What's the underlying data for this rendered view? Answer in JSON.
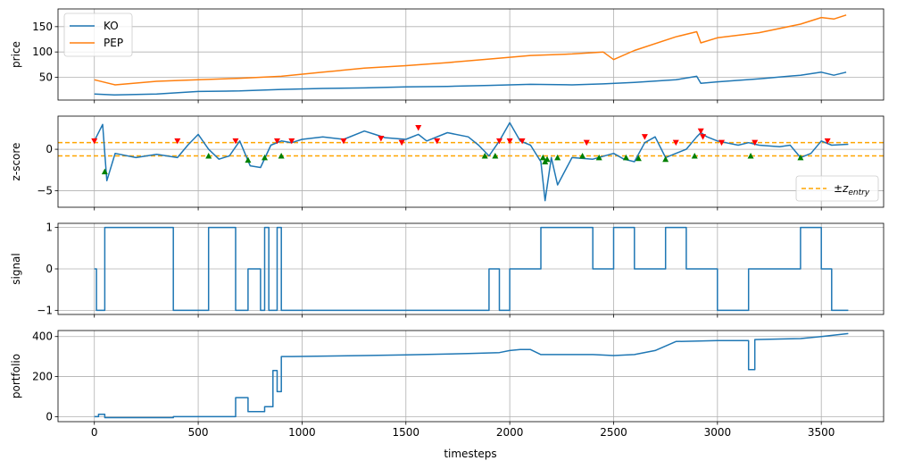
{
  "chart_data": [
    {
      "type": "line",
      "ylabel": "price",
      "xlim": [
        -175,
        3800
      ],
      "ylim": [
        5,
        185
      ],
      "yticks": [
        50,
        100,
        150
      ],
      "grid": true,
      "legend": {
        "placement": "top-left",
        "entries": [
          "KO",
          "PEP"
        ]
      },
      "series": [
        {
          "name": "KO",
          "color": "#1f77b4",
          "x": [
            0,
            100,
            300,
            500,
            700,
            900,
            1100,
            1300,
            1500,
            1700,
            1900,
            2100,
            2300,
            2450,
            2600,
            2800,
            2900,
            2920,
            3000,
            3200,
            3400,
            3500,
            3560,
            3620
          ],
          "y": [
            17,
            15,
            17,
            22,
            23,
            26,
            28,
            29,
            31,
            32,
            34,
            36,
            35,
            37,
            40,
            45,
            52,
            38,
            41,
            47,
            54,
            60,
            54,
            60
          ]
        },
        {
          "name": "PEP",
          "color": "#ff7f0e",
          "x": [
            0,
            100,
            300,
            500,
            700,
            900,
            1100,
            1300,
            1500,
            1700,
            1900,
            2100,
            2300,
            2450,
            2500,
            2600,
            2800,
            2900,
            2920,
            3000,
            3200,
            3400,
            3500,
            3560,
            3620
          ],
          "y": [
            45,
            35,
            42,
            45,
            48,
            52,
            60,
            68,
            73,
            79,
            86,
            93,
            96,
            100,
            85,
            103,
            130,
            140,
            118,
            128,
            138,
            155,
            168,
            165,
            173
          ]
        }
      ]
    },
    {
      "type": "line",
      "ylabel": "z-score",
      "xlim": [
        -175,
        3800
      ],
      "ylim": [
        -7,
        4
      ],
      "yticks": [
        -5,
        0
      ],
      "grid": true,
      "legend": {
        "placement": "bottom-right",
        "entries": [
          "±z_entry"
        ]
      },
      "thresholds": {
        "upper": 0.8,
        "lower": -0.8,
        "color": "#ffa500",
        "style": "dashed"
      },
      "series": [
        {
          "name": "",
          "color": "#1f77b4",
          "x": [
            0,
            40,
            60,
            100,
            200,
            300,
            400,
            450,
            500,
            550,
            600,
            650,
            700,
            750,
            800,
            850,
            900,
            950,
            1000,
            1100,
            1200,
            1300,
            1350,
            1400,
            1500,
            1560,
            1600,
            1700,
            1800,
            1850,
            1900,
            1950,
            2000,
            2050,
            2100,
            2150,
            2170,
            2200,
            2230,
            2300,
            2400,
            2500,
            2550,
            2600,
            2650,
            2700,
            2750,
            2800,
            2850,
            2900,
            2920,
            2950,
            3000,
            3100,
            3150,
            3200,
            3300,
            3350,
            3400,
            3450,
            3500,
            3550,
            3630
          ],
          "y": [
            1,
            3,
            -3.8,
            -0.5,
            -1,
            -0.6,
            -1,
            0.5,
            1.8,
            0,
            -1.2,
            -0.8,
            1,
            -2,
            -2.2,
            0.5,
            1,
            0.8,
            1.2,
            1.5,
            1.2,
            2.2,
            1.8,
            1.4,
            1.2,
            1.8,
            1,
            2,
            1.5,
            0.5,
            -0.8,
            1,
            3.2,
            1,
            0.5,
            -1.5,
            -6.2,
            -1,
            -4.3,
            -1,
            -1.2,
            -0.5,
            -1.2,
            -1.5,
            0.8,
            1.5,
            -1,
            -0.5,
            0,
            1.5,
            2,
            1.5,
            1,
            0.5,
            0.8,
            0.5,
            0.3,
            0.5,
            -1,
            -0.5,
            1,
            0.5,
            0.6
          ]
        }
      ],
      "sell_markers": {
        "color": "#ff0000",
        "shape": "triangle-down",
        "x": [
          0,
          400,
          680,
          880,
          950,
          1200,
          1380,
          1480,
          1560,
          1650,
          1950,
          2000,
          2060,
          2370,
          2650,
          2800,
          2920,
          2930,
          3020,
          3180,
          3530
        ],
        "y": [
          1,
          1,
          1,
          1,
          1,
          1,
          1.3,
          0.8,
          2.6,
          1,
          1,
          1,
          1,
          0.8,
          1.5,
          0.8,
          2.2,
          1.5,
          0.8,
          0.8,
          1
        ]
      },
      "buy_markers": {
        "color": "#008000",
        "shape": "triangle-up",
        "x": [
          50,
          550,
          740,
          820,
          900,
          1880,
          1930,
          2160,
          2170,
          2180,
          2230,
          2350,
          2430,
          2560,
          2620,
          2750,
          2890,
          3160,
          3400
        ],
        "y": [
          -2.7,
          -0.8,
          -1.3,
          -1,
          -0.8,
          -0.8,
          -0.8,
          -1,
          -1.5,
          -1.2,
          -1,
          -0.8,
          -1,
          -1,
          -1.1,
          -1.2,
          -0.8,
          -0.8,
          -1
        ]
      }
    },
    {
      "type": "line",
      "ylabel": "signal",
      "xlim": [
        -175,
        3800
      ],
      "ylim": [
        -1.1,
        1.1
      ],
      "yticks": [
        -1,
        0,
        1
      ],
      "grid": true,
      "series": [
        {
          "name": "",
          "color": "#1f77b4",
          "x": [
            0,
            10,
            10,
            50,
            50,
            380,
            380,
            550,
            550,
            550,
            550,
            680,
            680,
            740,
            740,
            800,
            800,
            820,
            820,
            840,
            840,
            880,
            880,
            900,
            900,
            950,
            950,
            1900,
            1900,
            1950,
            1950,
            2000,
            2000,
            2150,
            2150,
            2200,
            2200,
            2400,
            2400,
            2500,
            2500,
            2600,
            2600,
            2750,
            2750,
            2850,
            2850,
            3000,
            3000,
            3150,
            3150,
            3400,
            3400,
            3500,
            3500,
            3550,
            3550,
            3630
          ],
          "y": [
            0,
            0,
            -1,
            -1,
            1,
            1,
            -1,
            -1,
            0,
            0,
            1,
            1,
            -1,
            -1,
            0,
            0,
            -1,
            -1,
            1,
            1,
            -1,
            -1,
            1,
            1,
            -1,
            -1,
            -1,
            -1,
            0,
            0,
            -1,
            -1,
            0,
            0,
            1,
            1,
            1,
            1,
            0,
            0,
            1,
            1,
            0,
            0,
            1,
            1,
            0,
            0,
            -1,
            -1,
            0,
            0,
            1,
            1,
            0,
            0,
            -1,
            -1
          ]
        }
      ]
    },
    {
      "type": "line",
      "ylabel": "portfolio",
      "xlabel": "timesteps",
      "xlim": [
        -175,
        3800
      ],
      "ylim": [
        -25,
        430
      ],
      "yticks": [
        0,
        200,
        400
      ],
      "xticks": [
        0,
        500,
        1000,
        1500,
        2000,
        2500,
        3000,
        3500
      ],
      "grid": true,
      "series": [
        {
          "name": "",
          "color": "#1f77b4",
          "x": [
            0,
            20,
            20,
            50,
            50,
            380,
            380,
            680,
            680,
            740,
            740,
            820,
            820,
            860,
            860,
            880,
            880,
            900,
            900,
            950,
            950,
            1300,
            1500,
            1800,
            1950,
            2000,
            2050,
            2100,
            2150,
            2400,
            2500,
            2600,
            2700,
            2800,
            3000,
            3150,
            3150,
            3180,
            3180,
            3400,
            3500,
            3630
          ],
          "y": [
            0,
            0,
            12,
            12,
            -5,
            -5,
            0,
            0,
            95,
            95,
            25,
            25,
            50,
            50,
            230,
            230,
            125,
            125,
            300,
            300,
            300,
            305,
            308,
            315,
            320,
            330,
            335,
            335,
            310,
            310,
            305,
            310,
            330,
            375,
            380,
            380,
            235,
            235,
            385,
            390,
            400,
            415
          ]
        }
      ]
    }
  ],
  "legend_labels": {
    "ko": "KO",
    "pep": "PEP",
    "z_entry": "±z"
  },
  "z_entry_subscript": "entry"
}
